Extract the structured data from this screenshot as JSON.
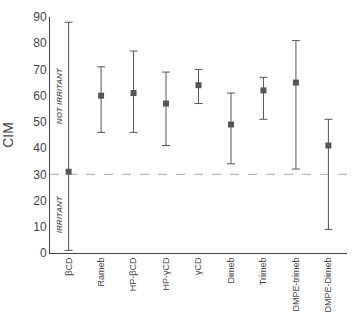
{
  "chart_data": {
    "type": "scatter",
    "categories": [
      "βCD",
      "Rameb",
      "HP-βCD",
      "HP-γCD",
      "γCD",
      "Dimeb",
      "Trimeb",
      "DMPE-trimeb",
      "DMPE-Dimeb"
    ],
    "values": [
      31,
      60,
      61,
      57,
      64,
      49,
      62,
      65,
      41
    ],
    "lower": [
      1,
      46,
      46,
      41,
      57,
      34,
      51,
      32,
      9
    ],
    "upper": [
      88,
      71,
      77,
      69,
      70,
      61,
      67,
      81,
      51
    ],
    "threshold": 30,
    "ylabel": "CIM",
    "ylim": [
      0,
      90
    ],
    "yticks": [
      0,
      10,
      20,
      30,
      40,
      50,
      60,
      70,
      80,
      90
    ],
    "annotations": [
      "NOT IRRITANT",
      "IRRITANT"
    ],
    "color": "#555555",
    "marker": "square",
    "grid": false
  }
}
